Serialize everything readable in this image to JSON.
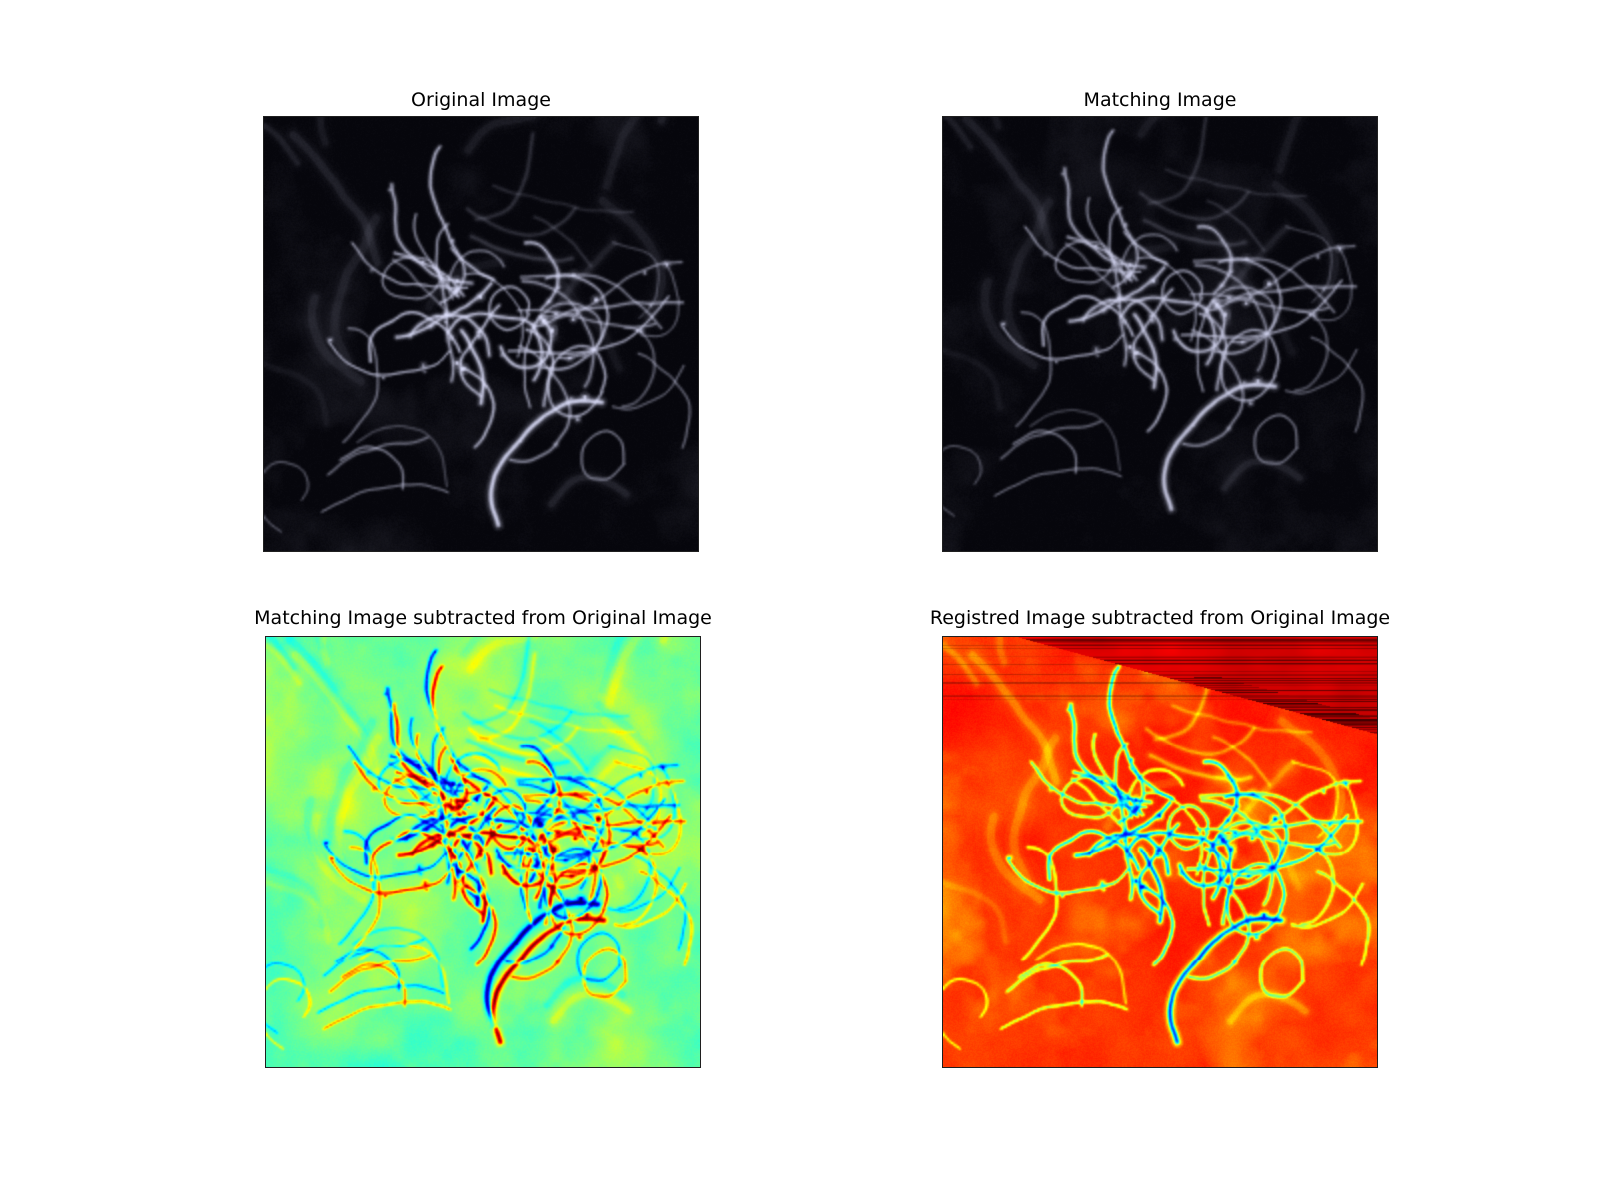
{
  "figure": {
    "kind": "matplotlib-figure",
    "background_color": "#ffffff",
    "title_color": "#000000",
    "panels": [
      {
        "id": "original",
        "title": "Original Image",
        "colormap": "grayscale",
        "background": "#0a0a10",
        "vessel_color": "#9a9cc4",
        "highlight_color": "#e8ecff",
        "description": "dark micrograph of a blood-vessel network, bright tangle in the center with branches extending right and a descending trunk"
      },
      {
        "id": "matching",
        "title": "Matching Image",
        "colormap": "grayscale",
        "background": "#0a0a10",
        "vessel_color": "#9a9cc4",
        "highlight_color": "#e8ecff",
        "description": "same vessel network acquired separately, slightly offset and dimmer"
      },
      {
        "id": "diff_matching",
        "title": "Matching Image subtracted from Original Image",
        "colormap": "jet",
        "background": "#5ce08f",
        "negative_color": "#1050d0",
        "positive_color": "#e83010",
        "description": "signed difference map: green zero background, blue negative residuals above vessels, red/orange/yellow positive residuals below"
      },
      {
        "id": "diff_registered",
        "title": "Registred Image subtracted from Original Image",
        "colormap": "jet",
        "background": "#ff3c00",
        "vessel_halo_color": "#ffd800",
        "vessel_core_color": "#30d8d0",
        "wedge_color": "#9a0e00",
        "description": "post-registration difference: red-orange background, yellow vessel halos with cyan/blue cores, dark striped misregistration wedge in the top-right corner"
      }
    ]
  },
  "chart_data": [
    {
      "type": "heatmap",
      "subplot": 1,
      "title": "Original Image",
      "colormap": "grayscale",
      "value_range": [
        0,
        1
      ],
      "content": "vessel intensity image, near-black background, bright vessel tangle centered around (0.5,0.5)"
    },
    {
      "type": "heatmap",
      "subplot": 2,
      "title": "Matching Image",
      "colormap": "grayscale",
      "value_range": [
        0,
        1
      ],
      "content": "same vessel intensity image shifted several pixels, slightly dimmer"
    },
    {
      "type": "heatmap",
      "subplot": 3,
      "title": "Matching Image subtracted from Original Image",
      "colormap": "jet",
      "value_range": [
        -1,
        1
      ],
      "content": "difference centered at zero (green); blue lobes where matching exceeds original, red/orange lobes where original exceeds matching"
    },
    {
      "type": "heatmap",
      "subplot": 4,
      "title": "Registred Image subtracted from Original Image",
      "colormap": "jet",
      "value_range": [
        -1,
        1
      ],
      "content": "mostly high positive background (red-orange); vessels appear as yellow-to-cyan valleys; dark-red banded wedge artifact above diagonal in top-right corner"
    }
  ]
}
